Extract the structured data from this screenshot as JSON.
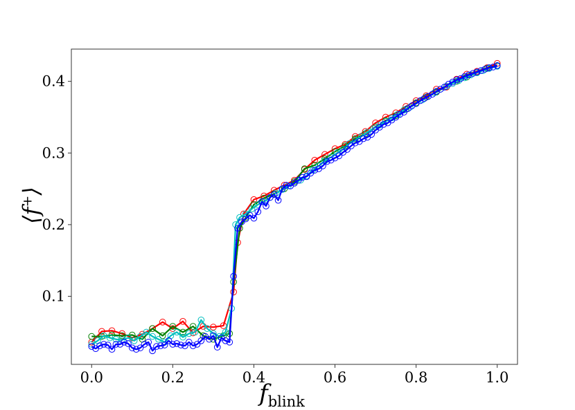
{
  "chart_data": {
    "type": "line",
    "xlabel": "f",
    "xlabel_sub": "blink",
    "ylabel": "⟨f⁺⟩",
    "xlim": [
      -0.05,
      1.05
    ],
    "ylim": [
      0.005,
      0.445
    ],
    "xticks": [
      0.0,
      0.2,
      0.4,
      0.6,
      0.8,
      1.0
    ],
    "xtick_labels": [
      "0.0",
      "0.2",
      "0.4",
      "0.6",
      "0.8",
      "1.0"
    ],
    "yticks": [
      0.1,
      0.2,
      0.3,
      0.4
    ],
    "ytick_labels": [
      "0.1",
      "0.2",
      "0.3",
      "0.4"
    ],
    "grid": false,
    "series": [
      {
        "color": "#ff0000",
        "x": [
          0.0,
          0.025,
          0.05,
          0.075,
          0.1,
          0.125,
          0.15,
          0.175,
          0.2,
          0.225,
          0.25,
          0.275,
          0.3,
          0.325,
          0.35,
          0.36,
          0.375,
          0.4,
          0.425,
          0.45,
          0.475,
          0.5,
          0.525,
          0.55,
          0.575,
          0.6,
          0.625,
          0.65,
          0.675,
          0.7,
          0.725,
          0.75,
          0.775,
          0.8,
          0.825,
          0.85,
          0.875,
          0.9,
          0.925,
          0.95,
          0.975,
          1.0
        ],
        "y": [
          0.036,
          0.051,
          0.052,
          0.048,
          0.042,
          0.047,
          0.055,
          0.064,
          0.055,
          0.065,
          0.049,
          0.058,
          0.057,
          0.059,
          0.106,
          0.175,
          0.215,
          0.235,
          0.24,
          0.248,
          0.255,
          0.262,
          0.277,
          0.29,
          0.298,
          0.306,
          0.312,
          0.323,
          0.33,
          0.342,
          0.35,
          0.356,
          0.365,
          0.373,
          0.38,
          0.389,
          0.392,
          0.403,
          0.41,
          0.414,
          0.419,
          0.425
        ]
      },
      {
        "color": "#008000",
        "x": [
          0.0,
          0.025,
          0.05,
          0.075,
          0.1,
          0.125,
          0.15,
          0.175,
          0.2,
          0.225,
          0.25,
          0.275,
          0.3,
          0.325,
          0.34,
          0.35,
          0.365,
          0.38,
          0.4,
          0.425,
          0.45,
          0.475,
          0.5,
          0.525,
          0.55,
          0.575,
          0.6,
          0.625,
          0.65,
          0.675,
          0.7,
          0.725,
          0.75,
          0.775,
          0.8,
          0.825,
          0.85,
          0.875,
          0.9,
          0.925,
          0.95,
          0.975,
          1.0
        ],
        "y": [
          0.044,
          0.044,
          0.046,
          0.045,
          0.046,
          0.04,
          0.055,
          0.045,
          0.058,
          0.05,
          0.058,
          0.045,
          0.04,
          0.045,
          0.048,
          0.12,
          0.195,
          0.21,
          0.228,
          0.237,
          0.243,
          0.25,
          0.26,
          0.278,
          0.283,
          0.292,
          0.302,
          0.31,
          0.32,
          0.327,
          0.336,
          0.345,
          0.352,
          0.361,
          0.37,
          0.378,
          0.385,
          0.393,
          0.4,
          0.406,
          0.412,
          0.418,
          0.422
        ]
      },
      {
        "color": "#00bfbf",
        "x": [
          0.0,
          0.015,
          0.03,
          0.045,
          0.06,
          0.075,
          0.09,
          0.105,
          0.12,
          0.135,
          0.15,
          0.165,
          0.18,
          0.195,
          0.21,
          0.225,
          0.24,
          0.255,
          0.27,
          0.285,
          0.3,
          0.315,
          0.33,
          0.345,
          0.355,
          0.365,
          0.38,
          0.395,
          0.41,
          0.425,
          0.44,
          0.455,
          0.47,
          0.485,
          0.5,
          0.515,
          0.53,
          0.545,
          0.56,
          0.575,
          0.59,
          0.605,
          0.62,
          0.635,
          0.65,
          0.665,
          0.68,
          0.695,
          0.71,
          0.725,
          0.74,
          0.755,
          0.77,
          0.785,
          0.8,
          0.815,
          0.83,
          0.845,
          0.86,
          0.875,
          0.89,
          0.905,
          0.92,
          0.935,
          0.95,
          0.965,
          0.98,
          1.0
        ],
        "y": [
          0.033,
          0.038,
          0.045,
          0.042,
          0.04,
          0.039,
          0.042,
          0.038,
          0.044,
          0.05,
          0.044,
          0.04,
          0.036,
          0.045,
          0.05,
          0.043,
          0.048,
          0.05,
          0.067,
          0.055,
          0.048,
          0.044,
          0.05,
          0.083,
          0.2,
          0.21,
          0.215,
          0.222,
          0.228,
          0.232,
          0.238,
          0.244,
          0.249,
          0.254,
          0.258,
          0.262,
          0.268,
          0.276,
          0.282,
          0.289,
          0.294,
          0.3,
          0.305,
          0.313,
          0.318,
          0.323,
          0.329,
          0.334,
          0.339,
          0.344,
          0.349,
          0.354,
          0.36,
          0.364,
          0.369,
          0.374,
          0.379,
          0.384,
          0.389,
          0.393,
          0.397,
          0.401,
          0.405,
          0.409,
          0.412,
          0.415,
          0.418,
          0.421
        ]
      },
      {
        "color": "#0000ff",
        "x": [
          0.0,
          0.01,
          0.02,
          0.03,
          0.04,
          0.05,
          0.06,
          0.07,
          0.08,
          0.09,
          0.1,
          0.11,
          0.12,
          0.13,
          0.14,
          0.15,
          0.16,
          0.17,
          0.18,
          0.19,
          0.2,
          0.21,
          0.22,
          0.23,
          0.24,
          0.25,
          0.26,
          0.27,
          0.28,
          0.29,
          0.3,
          0.31,
          0.32,
          0.33,
          0.34,
          0.35,
          0.36,
          0.37,
          0.38,
          0.39,
          0.4,
          0.41,
          0.42,
          0.43,
          0.44,
          0.45,
          0.46,
          0.47,
          0.48,
          0.49,
          0.5,
          0.51,
          0.52,
          0.53,
          0.54,
          0.55,
          0.56,
          0.57,
          0.58,
          0.59,
          0.6,
          0.61,
          0.62,
          0.63,
          0.64,
          0.65,
          0.66,
          0.67,
          0.68,
          0.69,
          0.7,
          0.71,
          0.72,
          0.73,
          0.74,
          0.75,
          0.76,
          0.77,
          0.78,
          0.79,
          0.8,
          0.81,
          0.82,
          0.83,
          0.84,
          0.85,
          0.86,
          0.87,
          0.88,
          0.89,
          0.9,
          0.91,
          0.92,
          0.93,
          0.94,
          0.95,
          0.96,
          0.97,
          0.98,
          0.99,
          1.0
        ],
        "y": [
          0.03,
          0.027,
          0.031,
          0.033,
          0.032,
          0.026,
          0.033,
          0.033,
          0.036,
          0.034,
          0.028,
          0.026,
          0.028,
          0.033,
          0.036,
          0.024,
          0.03,
          0.031,
          0.032,
          0.038,
          0.033,
          0.034,
          0.032,
          0.031,
          0.036,
          0.031,
          0.033,
          0.038,
          0.044,
          0.04,
          0.045,
          0.029,
          0.042,
          0.038,
          0.036,
          0.128,
          0.195,
          0.204,
          0.208,
          0.213,
          0.209,
          0.218,
          0.232,
          0.226,
          0.238,
          0.242,
          0.234,
          0.25,
          0.255,
          0.254,
          0.258,
          0.262,
          0.266,
          0.267,
          0.272,
          0.276,
          0.278,
          0.282,
          0.288,
          0.29,
          0.293,
          0.296,
          0.301,
          0.305,
          0.31,
          0.314,
          0.316,
          0.32,
          0.322,
          0.326,
          0.332,
          0.336,
          0.34,
          0.342,
          0.346,
          0.35,
          0.354,
          0.357,
          0.362,
          0.366,
          0.369,
          0.373,
          0.376,
          0.379,
          0.382,
          0.386,
          0.389,
          0.392,
          0.396,
          0.399,
          0.402,
          0.404,
          0.407,
          0.409,
          0.411,
          0.413,
          0.415,
          0.417,
          0.419,
          0.42,
          0.422
        ]
      }
    ]
  }
}
